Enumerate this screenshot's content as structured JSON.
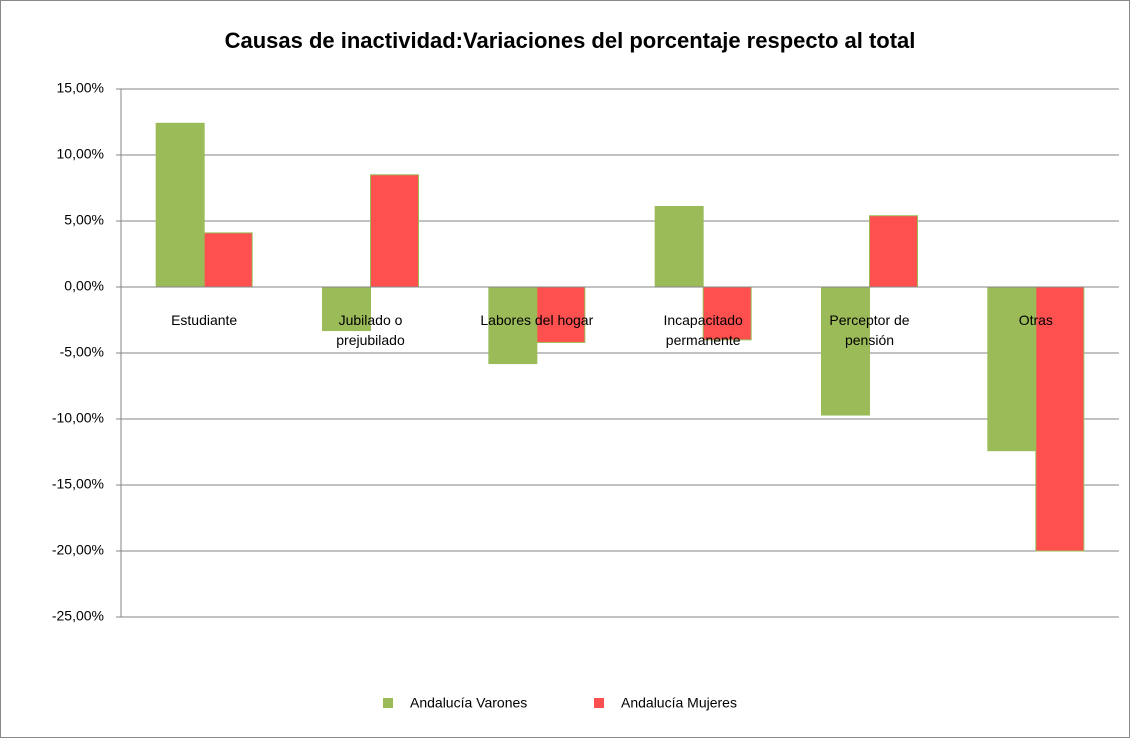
{
  "chart_data": {
    "type": "bar",
    "title": "Causas de inactividad:Variaciones del porcentaje respecto al total",
    "categories": [
      "Estudiante",
      "Jubilado o prejubilado",
      "Labores del hogar",
      "Incapacitado permanente",
      "Perceptor de pensión",
      "Otras"
    ],
    "series": [
      {
        "name": "Andalucía Varones",
        "color": "#9bbb59",
        "values": [
          12.4,
          -3.3,
          -5.8,
          6.1,
          -9.7,
          -12.4
        ]
      },
      {
        "name": "Andalucía Mujeres",
        "color": "#ff5050",
        "values": [
          4.1,
          8.5,
          -4.2,
          -4.0,
          5.4,
          -20.0
        ]
      }
    ],
    "ylim": [
      -25,
      15
    ],
    "yticks": [
      {
        "value": 15,
        "label": "15,00%"
      },
      {
        "value": 10,
        "label": "10,00%"
      },
      {
        "value": 5,
        "label": "5,00%"
      },
      {
        "value": 0,
        "label": "0,00%"
      },
      {
        "value": -5,
        "label": "-5,00%"
      },
      {
        "value": -10,
        "label": "-10,00%"
      },
      {
        "value": -15,
        "label": "-15,00%"
      },
      {
        "value": -20,
        "label": "-20,00%"
      },
      {
        "value": -25,
        "label": "-25,00%"
      }
    ],
    "grid": true,
    "legend": "bottom"
  }
}
